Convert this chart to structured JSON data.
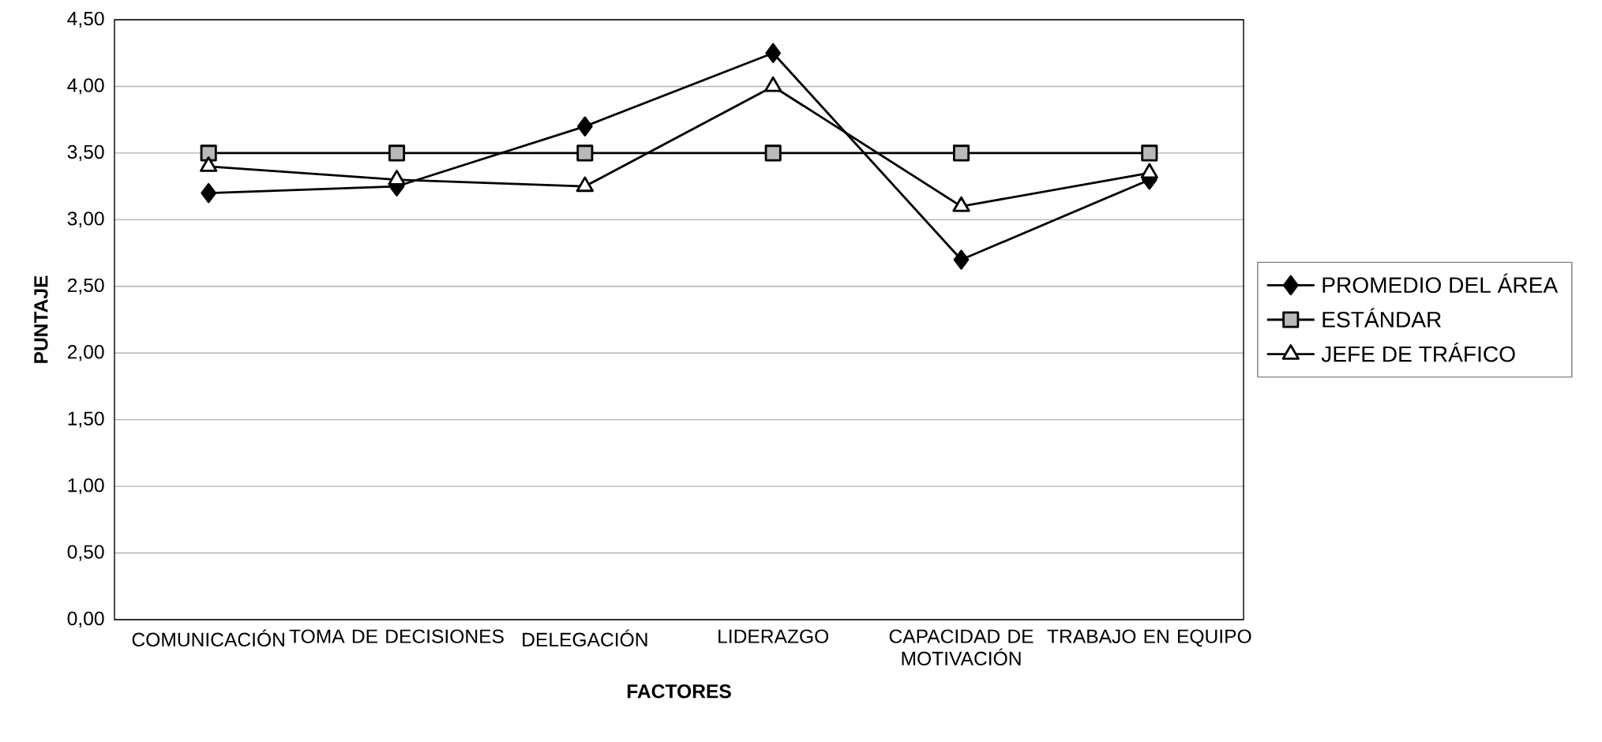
{
  "chart_data": {
    "type": "line",
    "xlabel": "FACTORES",
    "ylabel": "PUNTAJE",
    "categories": [
      "COMUNICACIÓN",
      "TOMA DE DECISIONES",
      "DELEGACIÓN",
      "LIDERAZGO",
      "CAPACIDAD DE MOTIVACIÓN",
      "TRABAJO EN EQUIPO"
    ],
    "series": [
      {
        "name": "PROMEDIO DEL ÁREA",
        "color": "#000000",
        "marker": "diamond",
        "values": [
          3.2,
          3.25,
          3.7,
          4.25,
          2.7,
          3.3
        ]
      },
      {
        "name": "ESTÁNDAR",
        "color": "#000000",
        "marker": "square",
        "values": [
          3.5,
          3.5,
          3.5,
          3.5,
          3.5,
          3.5
        ]
      },
      {
        "name": "JEFE DE TRÁFICO",
        "color": "#000000",
        "marker": "triangle",
        "values": [
          3.4,
          3.3,
          3.25,
          4.0,
          3.1,
          3.35
        ]
      }
    ],
    "ylim": [
      0,
      4.5
    ],
    "yticks": [
      {
        "value": 0,
        "label": "0,00"
      },
      {
        "value": 0.5,
        "label": "0,50"
      },
      {
        "value": 1,
        "label": "1,00"
      },
      {
        "value": 1.5,
        "label": "1,50"
      },
      {
        "value": 2,
        "label": "2,00"
      },
      {
        "value": 2.5,
        "label": "2,50"
      },
      {
        "value": 3,
        "label": "3,00"
      },
      {
        "value": 3.5,
        "label": "3,50"
      },
      {
        "value": 4,
        "label": "4,00"
      },
      {
        "value": 4.5,
        "label": "4,50"
      }
    ],
    "grid": "y",
    "legend": "right",
    "line_style": "solid"
  }
}
